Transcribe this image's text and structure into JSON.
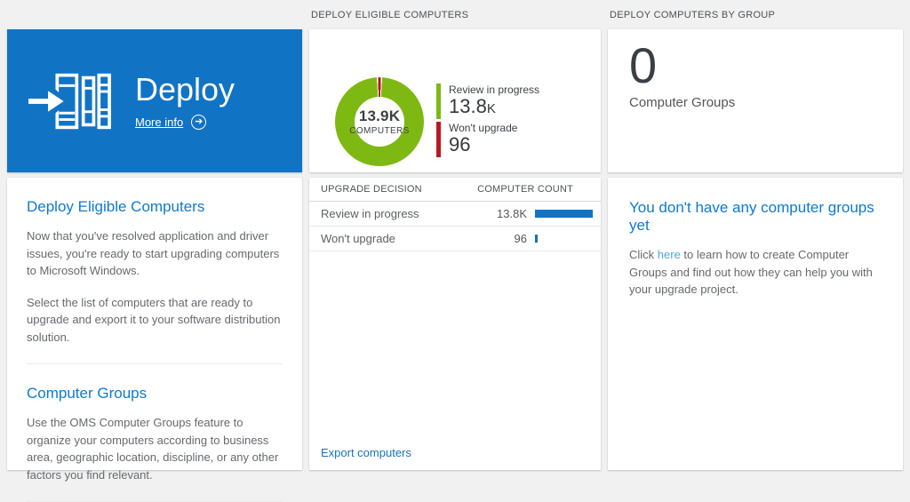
{
  "colors": {
    "accent_blue": "#1173c4",
    "heading_blue": "#0d7ad4",
    "link_blue": "#1673c2",
    "light_link_blue": "#56a4da",
    "green": "#7eb812",
    "red": "#b81a20",
    "bar_blue": "#1173c4"
  },
  "section_headers": {
    "eligible": "DEPLOY ELIGIBLE COMPUTERS",
    "by_group": "DEPLOY COMPUTERS BY GROUP"
  },
  "deploy_tile": {
    "title": "Deploy",
    "more_info_label": "More info"
  },
  "info_panel": {
    "sections": [
      {
        "heading": "Deploy Eligible Computers",
        "paragraphs": [
          "Now that you've resolved application and driver issues, you're ready to start upgrading computers to Microsoft Windows.",
          "Select the list of computers that are ready to upgrade and export it to your software distribution solution."
        ]
      },
      {
        "heading": "Computer Groups",
        "paragraphs": [
          "Use the OMS Computer Groups feature to organize your computers according to business area, geographic location, discipline, or any other factors you find relevant."
        ]
      }
    ]
  },
  "chart_data": {
    "type": "pie",
    "title": "DEPLOY ELIGIBLE COMPUTERS",
    "center_value": "13.9K",
    "center_label": "COMPUTERS",
    "legend_position": "right",
    "slices": [
      {
        "label": "Review in progress",
        "value": 13800,
        "display_main": "13.8",
        "display_suffix": "K",
        "color": "#7eb812"
      },
      {
        "label": "Won't upgrade",
        "value": 96,
        "display_main": "96",
        "display_suffix": "",
        "color": "#b81a20"
      }
    ]
  },
  "decision_table": {
    "columns": [
      "UPGRADE DECISION",
      "COMPUTER COUNT"
    ],
    "rows": [
      {
        "decision": "Review in progress",
        "count": "13.8K",
        "bar_pct": 100
      },
      {
        "decision": "Won't upgrade",
        "count": "96",
        "bar_pct": 4
      }
    ],
    "export_label": "Export computers"
  },
  "groups_tile": {
    "count": "0",
    "label": "Computer Groups"
  },
  "groups_info": {
    "heading": "You don't have any computer groups yet",
    "text_before_link": "Click ",
    "link_text": "here",
    "text_after_link": " to learn how to create Computer Groups and find out how they can help you with your upgrade project."
  }
}
